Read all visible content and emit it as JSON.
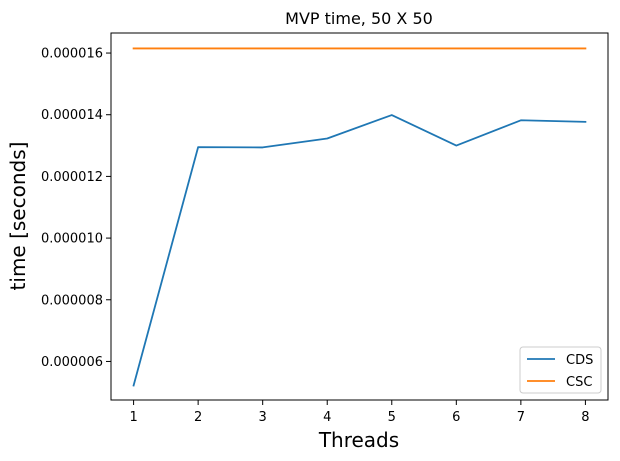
{
  "chart_data": {
    "type": "line",
    "title": "MVP time, 50 X 50",
    "xlabel": "Threads",
    "ylabel": "time [seconds]",
    "x": [
      1,
      2,
      3,
      4,
      5,
      6,
      7,
      8
    ],
    "xticks": [
      "1",
      "2",
      "3",
      "4",
      "5",
      "6",
      "7",
      "8"
    ],
    "xlim": [
      0.65,
      8.35
    ],
    "ylim": [
      4.75e-06,
      1.665e-05
    ],
    "yticks": [
      6e-06,
      8e-06,
      1e-05,
      1.2e-05,
      1.4e-05,
      1.6e-05
    ],
    "ytick_labels": [
      "0.000006",
      "0.000008",
      "0.000010",
      "0.000012",
      "0.000014",
      "0.000016"
    ],
    "grid": false,
    "legend_position": "bottom-right",
    "series": [
      {
        "name": "CDS",
        "color": "#1f77b4",
        "values": [
          5.22e-06,
          1.295e-05,
          1.294e-05,
          1.323e-05,
          1.399e-05,
          1.3e-05,
          1.382e-05,
          1.377e-05
        ]
      },
      {
        "name": "CSC",
        "color": "#ff7f0e",
        "values": [
          1.615e-05,
          1.615e-05,
          1.615e-05,
          1.615e-05,
          1.615e-05,
          1.615e-05,
          1.615e-05,
          1.615e-05
        ]
      }
    ]
  }
}
